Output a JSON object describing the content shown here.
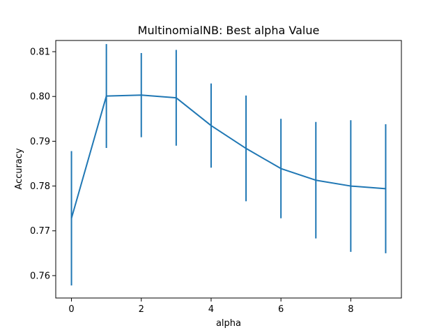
{
  "chart_data": {
    "type": "line",
    "title": "MultinomialNB: Best alpha Value",
    "xlabel": "alpha",
    "ylabel": "Accuracy",
    "xlim": [
      -0.45,
      9.45
    ],
    "ylim": [
      0.755,
      0.8125
    ],
    "xticks": [
      0,
      2,
      4,
      6,
      8
    ],
    "yticks": [
      0.76,
      0.77,
      0.78,
      0.79,
      0.8,
      0.81
    ],
    "ytick_labels": [
      "0.76",
      "0.77",
      "0.78",
      "0.79",
      "0.80",
      "0.81"
    ],
    "grid": false,
    "series": [
      {
        "color": "#1f77b4",
        "x": [
          0,
          1,
          2,
          3,
          4,
          5,
          6,
          7,
          8,
          9
        ],
        "y": [
          0.7728,
          0.8001,
          0.8003,
          0.7997,
          0.7935,
          0.7884,
          0.7839,
          0.7813,
          0.78,
          0.7794
        ],
        "yerr": [
          0.015,
          0.0116,
          0.0094,
          0.0107,
          0.0094,
          0.0118,
          0.0111,
          0.013,
          0.0147,
          0.0144
        ]
      }
    ]
  }
}
